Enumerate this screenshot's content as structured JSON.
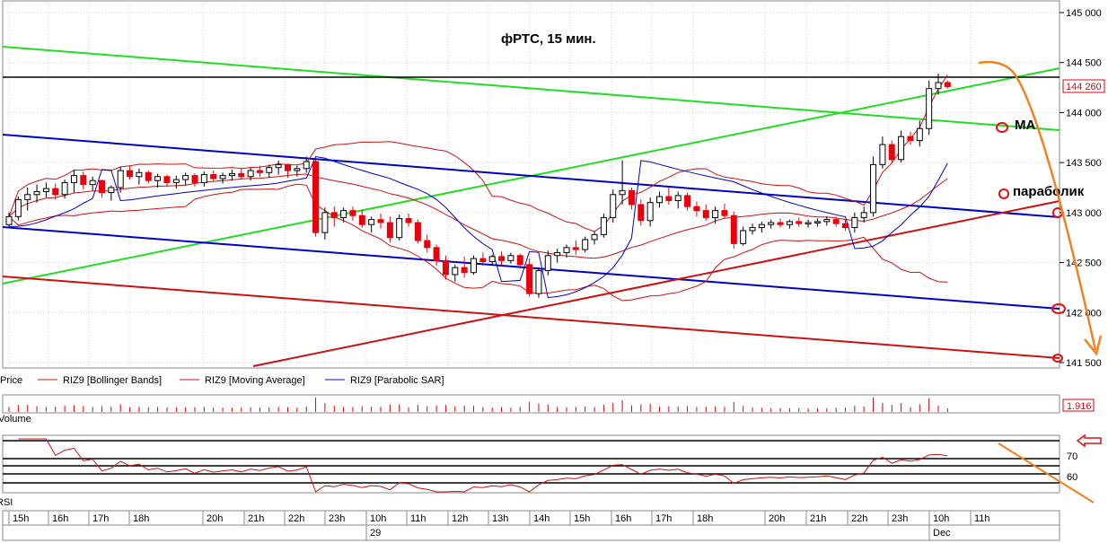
{
  "chart_data": {
    "type": "candlestick",
    "title": "фРТС,  15 мин.",
    "price_axis": {
      "ticks": [
        "145 000",
        "144 500",
        "144 000",
        "143 500",
        "143 000",
        "142 500",
        "142 000",
        "141 500"
      ],
      "min": 141500,
      "max": 145000,
      "last_price_label": "144 260",
      "last_price": 144260,
      "grid": true
    },
    "time_axis": {
      "hour_labels": [
        "15h",
        "16h",
        "17h",
        "18h",
        "20h",
        "21h",
        "22h",
        "23h",
        "10h",
        "11h",
        "12h",
        "13h",
        "14h",
        "15h",
        "16h",
        "17h",
        "18h",
        "20h",
        "21h",
        "22h",
        "23h",
        "10h",
        "11h"
      ],
      "day_labels": [
        "29",
        "Dec"
      ]
    },
    "candles": [
      [
        142880,
        143000,
        142860,
        142960
      ],
      [
        142960,
        143160,
        142920,
        143130
      ],
      [
        143130,
        143250,
        143020,
        143180
      ],
      [
        143180,
        143280,
        143100,
        143210
      ],
      [
        143210,
        143300,
        143150,
        143240
      ],
      [
        143240,
        143290,
        143130,
        143180
      ],
      [
        143180,
        143330,
        143140,
        143300
      ],
      [
        143300,
        143430,
        143200,
        143370
      ],
      [
        143370,
        143410,
        143230,
        143280
      ],
      [
        143280,
        143360,
        143220,
        143320
      ],
      [
        143320,
        143330,
        143150,
        143200
      ],
      [
        143200,
        143270,
        143120,
        143250
      ],
      [
        143250,
        143460,
        143200,
        143420
      ],
      [
        143420,
        143470,
        143330,
        143360
      ],
      [
        143360,
        143440,
        143280,
        143400
      ],
      [
        143400,
        143420,
        143290,
        143320
      ],
      [
        143320,
        143390,
        143250,
        143360
      ],
      [
        143360,
        143380,
        143260,
        143300
      ],
      [
        143300,
        143370,
        143240,
        143330
      ],
      [
        143330,
        143400,
        143270,
        143370
      ],
      [
        143370,
        143390,
        143260,
        143300
      ],
      [
        143300,
        143410,
        143260,
        143380
      ],
      [
        143380,
        143420,
        143310,
        143340
      ],
      [
        143340,
        143400,
        143290,
        143370
      ],
      [
        143370,
        143430,
        143320,
        143390
      ],
      [
        143390,
        143440,
        143330,
        143360
      ],
      [
        143360,
        143450,
        143320,
        143420
      ],
      [
        143420,
        143470,
        143360,
        143400
      ],
      [
        143400,
        143480,
        143350,
        143450
      ],
      [
        143450,
        143520,
        143380,
        143480
      ],
      [
        143480,
        143490,
        143350,
        143420
      ],
      [
        143420,
        143470,
        143360,
        143440
      ],
      [
        143440,
        143560,
        143400,
        143510
      ],
      [
        143510,
        143530,
        142760,
        142800
      ],
      [
        142800,
        143050,
        142730,
        143000
      ],
      [
        143000,
        143060,
        142860,
        142950
      ],
      [
        142950,
        143050,
        142900,
        143020
      ],
      [
        143020,
        143060,
        142920,
        142970
      ],
      [
        142970,
        143030,
        142850,
        142880
      ],
      [
        142880,
        142960,
        142800,
        142930
      ],
      [
        142930,
        142990,
        142840,
        142900
      ],
      [
        142900,
        142960,
        142700,
        142750
      ],
      [
        142750,
        142980,
        142720,
        142940
      ],
      [
        142940,
        142990,
        142860,
        142900
      ],
      [
        142900,
        142930,
        142690,
        142720
      ],
      [
        142720,
        142780,
        142600,
        142650
      ],
      [
        142650,
        142680,
        142470,
        142520
      ],
      [
        142520,
        142570,
        142330,
        142380
      ],
      [
        142380,
        142480,
        142310,
        142450
      ],
      [
        142450,
        142560,
        142350,
        142400
      ],
      [
        142400,
        142570,
        142380,
        142540
      ],
      [
        142540,
        142600,
        142470,
        142510
      ],
      [
        142510,
        142580,
        142470,
        142560
      ],
      [
        142560,
        142610,
        142470,
        142520
      ],
      [
        142520,
        142600,
        142490,
        142570
      ],
      [
        142570,
        142590,
        142440,
        142480
      ],
      [
        142480,
        142540,
        142160,
        142190
      ],
      [
        142190,
        142450,
        142150,
        142420
      ],
      [
        142420,
        142620,
        142370,
        142570
      ],
      [
        142570,
        142640,
        142500,
        142600
      ],
      [
        142600,
        142680,
        142550,
        142650
      ],
      [
        142650,
        142720,
        142580,
        142630
      ],
      [
        142630,
        142760,
        142600,
        142730
      ],
      [
        142730,
        142810,
        142680,
        142780
      ],
      [
        142780,
        142990,
        142750,
        142950
      ],
      [
        142950,
        143230,
        142900,
        143180
      ],
      [
        143180,
        143520,
        143080,
        143220
      ],
      [
        143220,
        143250,
        143030,
        143080
      ],
      [
        143080,
        143130,
        142870,
        142920
      ],
      [
        142920,
        143150,
        142860,
        143100
      ],
      [
        143100,
        143210,
        143050,
        143160
      ],
      [
        143160,
        143250,
        143080,
        143120
      ],
      [
        143120,
        143210,
        143040,
        143170
      ],
      [
        143170,
        143200,
        143020,
        143060
      ],
      [
        143060,
        143110,
        142960,
        143020
      ],
      [
        143020,
        143080,
        142920,
        142950
      ],
      [
        142950,
        143060,
        142890,
        143020
      ],
      [
        143020,
        143090,
        142940,
        142970
      ],
      [
        142970,
        143010,
        142640,
        142690
      ],
      [
        142690,
        142860,
        142670,
        142820
      ],
      [
        142820,
        142890,
        142780,
        142850
      ],
      [
        142850,
        142910,
        142800,
        142880
      ],
      [
        142880,
        142930,
        142840,
        142900
      ],
      [
        142900,
        142940,
        142850,
        142880
      ],
      [
        142880,
        142930,
        142840,
        142910
      ],
      [
        142910,
        142950,
        142860,
        142890
      ],
      [
        142890,
        142930,
        142850,
        142900
      ],
      [
        142900,
        142940,
        142860,
        142910
      ],
      [
        142910,
        142960,
        142870,
        142930
      ],
      [
        142930,
        142960,
        142860,
        142890
      ],
      [
        142890,
        142930,
        142820,
        142850
      ],
      [
        142850,
        143000,
        142800,
        142950
      ],
      [
        142950,
        143060,
        142900,
        143000
      ],
      [
        143000,
        143560,
        142960,
        143480
      ],
      [
        143480,
        143760,
        143440,
        143680
      ],
      [
        143680,
        143720,
        143490,
        143530
      ],
      [
        143530,
        143820,
        143500,
        143760
      ],
      [
        143760,
        143810,
        143680,
        143720
      ],
      [
        143720,
        143920,
        143660,
        143840
      ],
      [
        143840,
        144320,
        143780,
        144240
      ],
      [
        144240,
        144390,
        144180,
        144300
      ],
      [
        144300,
        144320,
        144240,
        144260
      ]
    ],
    "indicators": [
      "RIZ9 [Bollinger Bands]",
      "RIZ9 [Moving Average]",
      "RIZ9 [Parabolic SAR]"
    ],
    "series_labels": [
      "Price",
      "Volume",
      "RSI"
    ],
    "volume_readout": "1.916",
    "rsi_levels": [
      "70",
      "60"
    ],
    "annotations": [
      "MA",
      "параболик"
    ],
    "colors": {
      "up": "#ffffff",
      "down": "#e8000b",
      "grid": "#d0d0d0",
      "green": "#22dd22",
      "blue": "#0000c0",
      "red": "#cc1111",
      "orange": "#f08020"
    }
  }
}
